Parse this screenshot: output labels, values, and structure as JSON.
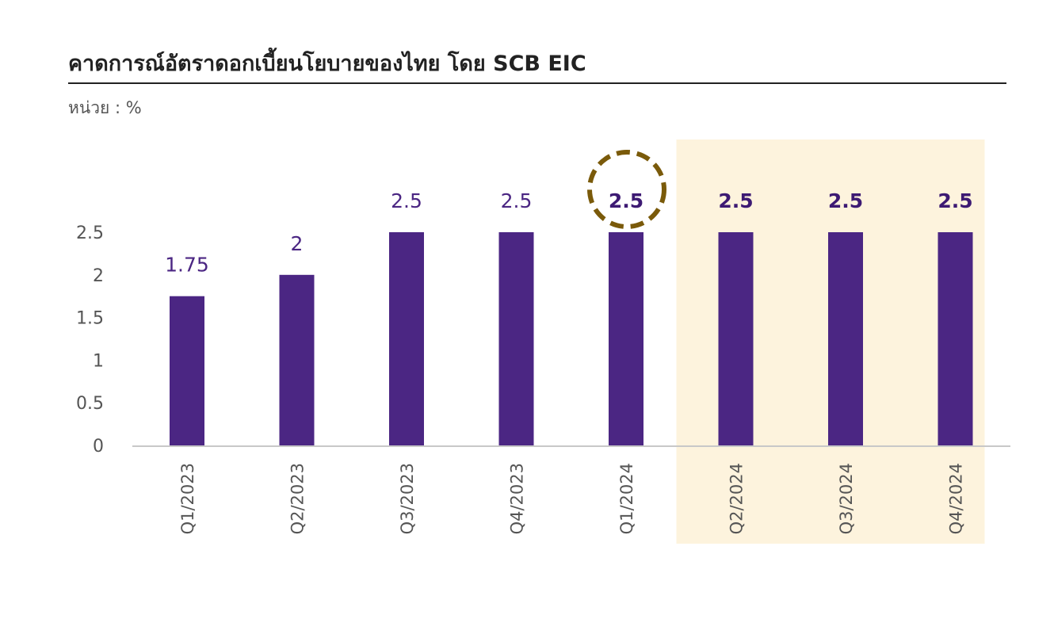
{
  "title": "คาดการณ์อัตราดอกเบี้ยนโยบายของไทย โดย SCB EIC",
  "unit": "หน่วย : %",
  "colors": {
    "bar": "#4b2683",
    "label_actual": "#4b2683",
    "label_forecast": "#3d1a73",
    "forecast_band": "#fdf3dd",
    "highlight_circle": "#7a5a0a",
    "axis": "#c8c8c8"
  },
  "chart_data": {
    "type": "bar",
    "categories": [
      "Q1/2023",
      "Q2/2023",
      "Q3/2023",
      "Q4/2023",
      "Q1/2024",
      "Q2/2024",
      "Q3/2024",
      "Q4/2024"
    ],
    "values": [
      1.75,
      2,
      2.5,
      2.5,
      2.5,
      2.5,
      2.5,
      2.5
    ],
    "data_labels": [
      "1.75",
      "2",
      "2.5",
      "2.5",
      "2.5",
      "2.5",
      "2.5",
      "2.5"
    ],
    "bold_labels_from_index": 4,
    "highlighted_index": 4,
    "forecast_categories": [
      "Q2/2024",
      "Q3/2024",
      "Q4/2024"
    ],
    "yticks": [
      "0",
      "0.5",
      "1",
      "1.5",
      "2",
      "2.5"
    ],
    "ytick_values": [
      0,
      0.5,
      1,
      1.5,
      2,
      2.5
    ],
    "ylim": [
      0,
      2.5
    ],
    "xlabel": "",
    "ylabel": "",
    "legend": "none",
    "grid": false,
    "x_label_rotation": "vertical"
  }
}
